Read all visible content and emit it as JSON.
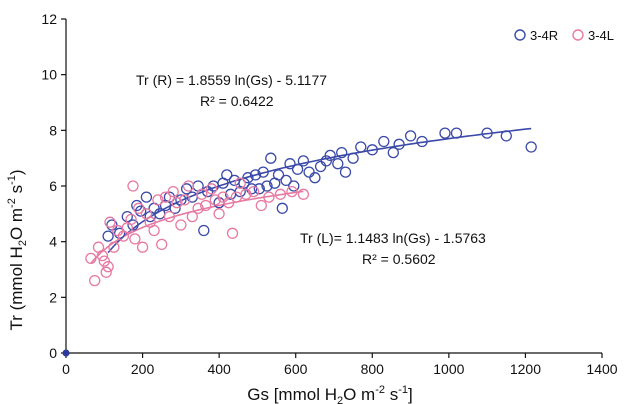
{
  "chart_data": {
    "type": "scatter",
    "xlabel": "Gs [mmol H2O m-2 s-1]",
    "ylabel": "Tr (mmol H2O m-2 s-1)",
    "xlim": [
      0,
      1400
    ],
    "ylim": [
      0,
      12
    ],
    "x_ticks": [
      "0",
      "200",
      "400",
      "600",
      "800",
      "1000",
      "1200",
      "1400"
    ],
    "y_ticks": [
      "0",
      "2",
      "4",
      "6",
      "8",
      "10",
      "12"
    ],
    "grid": false,
    "legend_position": "top-right",
    "origin_marker": {
      "x": 0,
      "y": 0,
      "color": "#2b3a9c"
    },
    "series": [
      {
        "name": "3-4R",
        "color": "#3b4aa8",
        "marker": "open-circle",
        "fit": {
          "a": 1.8559,
          "b": -5.1177,
          "x_range": [
            110,
            1215
          ],
          "equation": "Tr (R) = 1.8559 ln(Gs) - 5.1177",
          "r2": "R² = 0.6422"
        },
        "points": [
          [
            110,
            4.2
          ],
          [
            120,
            4.6
          ],
          [
            140,
            4.3
          ],
          [
            160,
            4.9
          ],
          [
            175,
            4.6
          ],
          [
            185,
            5.3
          ],
          [
            195,
            5.1
          ],
          [
            210,
            5.6
          ],
          [
            220,
            4.9
          ],
          [
            230,
            5.2
          ],
          [
            245,
            5.0
          ],
          [
            260,
            5.3
          ],
          [
            270,
            5.6
          ],
          [
            285,
            5.2
          ],
          [
            300,
            5.5
          ],
          [
            315,
            5.9
          ],
          [
            330,
            5.6
          ],
          [
            345,
            6.0
          ],
          [
            360,
            4.4
          ],
          [
            370,
            5.8
          ],
          [
            385,
            6.0
          ],
          [
            400,
            5.4
          ],
          [
            410,
            6.1
          ],
          [
            420,
            6.4
          ],
          [
            430,
            5.7
          ],
          [
            440,
            6.2
          ],
          [
            455,
            5.8
          ],
          [
            465,
            6.1
          ],
          [
            475,
            6.3
          ],
          [
            485,
            5.9
          ],
          [
            495,
            6.4
          ],
          [
            505,
            5.9
          ],
          [
            515,
            6.5
          ],
          [
            525,
            6.0
          ],
          [
            535,
            7.0
          ],
          [
            545,
            6.1
          ],
          [
            555,
            6.4
          ],
          [
            565,
            5.2
          ],
          [
            575,
            6.2
          ],
          [
            585,
            6.8
          ],
          [
            595,
            6.0
          ],
          [
            605,
            6.6
          ],
          [
            620,
            6.9
          ],
          [
            635,
            6.5
          ],
          [
            650,
            6.3
          ],
          [
            665,
            6.7
          ],
          [
            680,
            6.9
          ],
          [
            690,
            7.1
          ],
          [
            710,
            6.8
          ],
          [
            720,
            7.2
          ],
          [
            730,
            6.5
          ],
          [
            750,
            7.0
          ],
          [
            770,
            7.4
          ],
          [
            800,
            7.3
          ],
          [
            830,
            7.6
          ],
          [
            855,
            7.2
          ],
          [
            870,
            7.5
          ],
          [
            900,
            7.8
          ],
          [
            930,
            7.6
          ],
          [
            990,
            7.9
          ],
          [
            1020,
            7.9
          ],
          [
            1100,
            7.9
          ],
          [
            1150,
            7.8
          ],
          [
            1215,
            7.4
          ]
        ]
      },
      {
        "name": "3-4L",
        "color": "#e77aa2",
        "marker": "open-circle",
        "fit": {
          "a": 1.1483,
          "b": -1.5763,
          "x_range": [
            65,
            620
          ],
          "equation": "Tr (L)= 1.1483 ln(Gs) - 1.5763",
          "r2": "R² = 0.5602"
        },
        "points": [
          [
            65,
            3.4
          ],
          [
            75,
            2.6
          ],
          [
            85,
            3.8
          ],
          [
            95,
            3.5
          ],
          [
            100,
            3.3
          ],
          [
            105,
            2.9
          ],
          [
            110,
            3.1
          ],
          [
            115,
            4.7
          ],
          [
            125,
            3.8
          ],
          [
            135,
            4.4
          ],
          [
            150,
            4.2
          ],
          [
            160,
            4.5
          ],
          [
            170,
            4.8
          ],
          [
            175,
            6.0
          ],
          [
            180,
            4.1
          ],
          [
            190,
            5.2
          ],
          [
            200,
            3.8
          ],
          [
            210,
            5.0
          ],
          [
            220,
            4.7
          ],
          [
            230,
            4.4
          ],
          [
            240,
            5.5
          ],
          [
            250,
            3.9
          ],
          [
            260,
            5.6
          ],
          [
            270,
            4.9
          ],
          [
            280,
            5.8
          ],
          [
            290,
            5.4
          ],
          [
            300,
            4.6
          ],
          [
            310,
            5.5
          ],
          [
            320,
            6.0
          ],
          [
            330,
            4.9
          ],
          [
            345,
            5.2
          ],
          [
            355,
            5.7
          ],
          [
            365,
            5.3
          ],
          [
            380,
            5.9
          ],
          [
            390,
            5.5
          ],
          [
            400,
            5.0
          ],
          [
            410,
            5.6
          ],
          [
            425,
            5.4
          ],
          [
            435,
            4.3
          ],
          [
            445,
            5.6
          ],
          [
            455,
            6.1
          ],
          [
            470,
            5.7
          ],
          [
            490,
            5.8
          ],
          [
            510,
            5.3
          ],
          [
            530,
            5.6
          ],
          [
            560,
            5.7
          ],
          [
            590,
            5.8
          ],
          [
            620,
            5.7
          ]
        ]
      }
    ]
  }
}
